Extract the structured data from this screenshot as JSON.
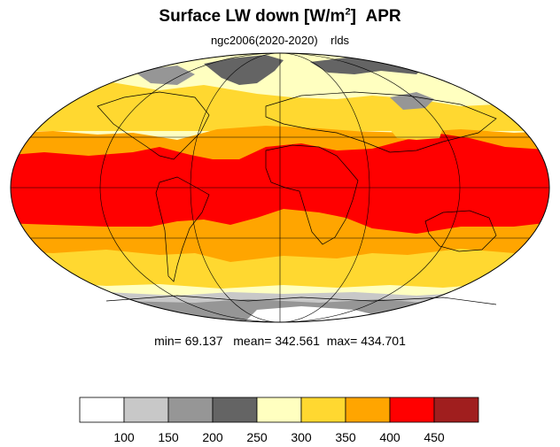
{
  "title": {
    "main": "Surface LW down [W/m",
    "superscript": "2",
    "close": "]",
    "month": "APR"
  },
  "subtitle": {
    "model": "ngc2006(2020-2020)",
    "variable": "rlds"
  },
  "stats": {
    "min_label": "min=",
    "min": "69.137",
    "mean_label": "mean=",
    "mean": "342.561",
    "max_label": "max=",
    "max": "434.701"
  },
  "colorbar": {
    "colors": [
      "#ffffff",
      "#c8c8c8",
      "#969696",
      "#646464",
      "#ffffc0",
      "#ffd830",
      "#ffa500",
      "#ff0000",
      "#a01e1e"
    ],
    "labels": [
      "100",
      "150",
      "200",
      "250",
      "300",
      "350",
      "400",
      "450"
    ]
  },
  "map_colors": {
    "red": "#ff0000",
    "orange": "#ffa500",
    "gold": "#ffd830",
    "cream": "#ffffc0",
    "dark_gray": "#646464",
    "mid_gray": "#969696",
    "light_gray": "#c8c8c8",
    "white": "#ffffff"
  }
}
